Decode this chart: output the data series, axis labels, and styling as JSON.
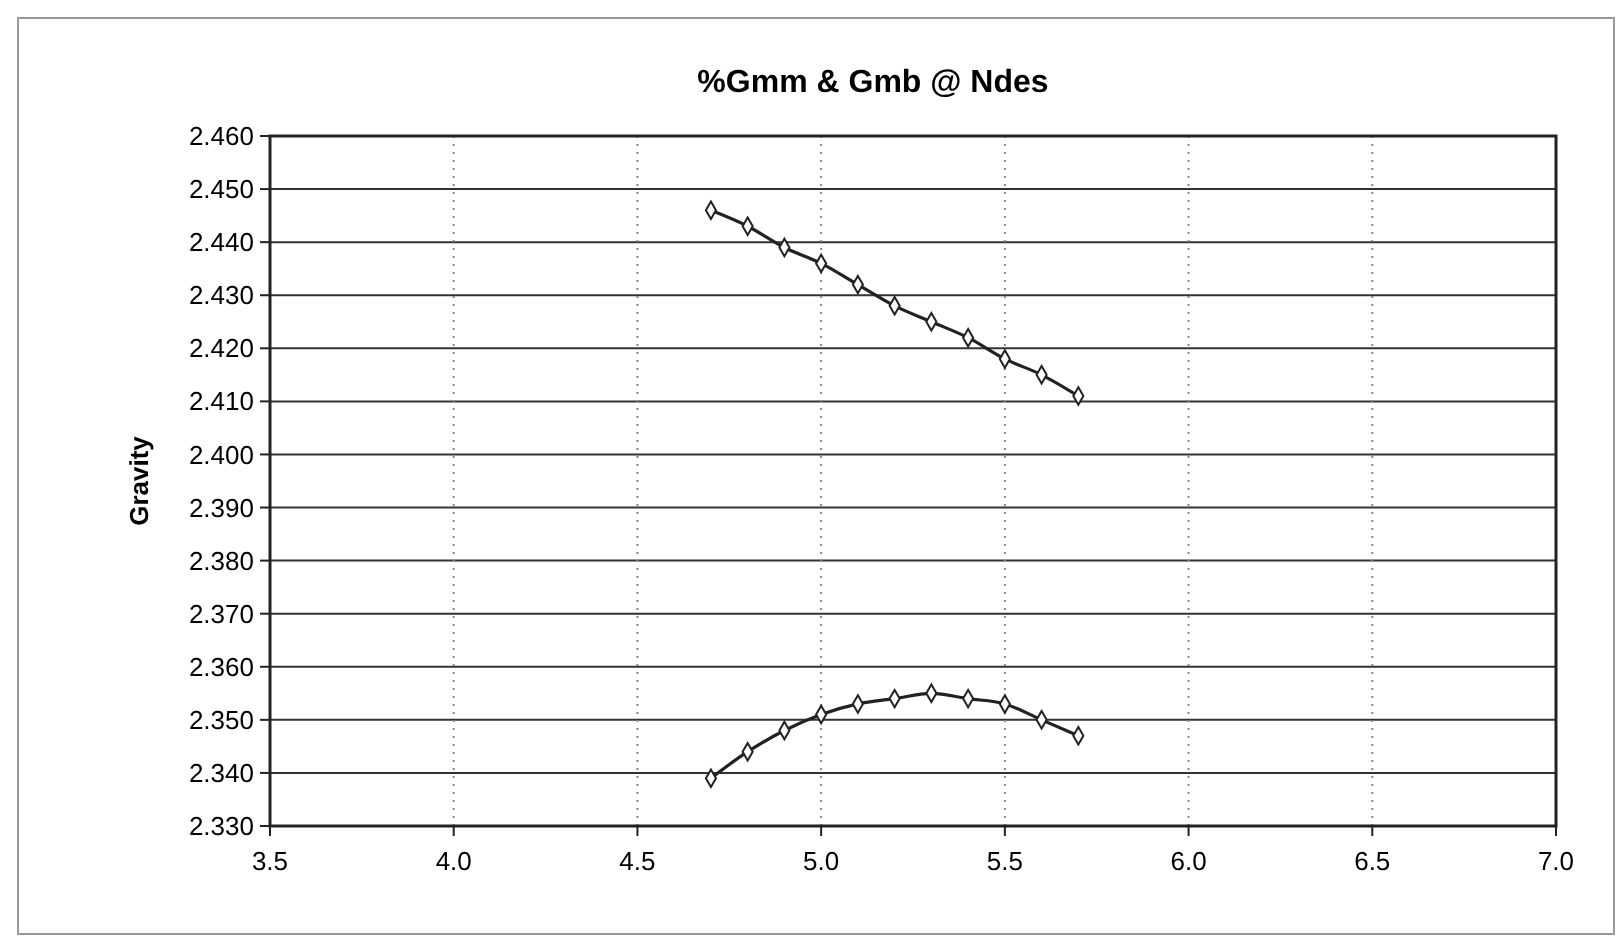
{
  "chart_data": {
    "type": "line",
    "title": "%Gmm & Gmb @ Ndes",
    "ylabel": "Gravity",
    "x": [
      4.7,
      4.8,
      4.9,
      5.0,
      5.1,
      5.2,
      5.3,
      5.4,
      5.5,
      5.6,
      5.7
    ],
    "series": [
      {
        "color": "#222222",
        "values": [
          2.446,
          2.443,
          2.439,
          2.436,
          2.432,
          2.428,
          2.425,
          2.422,
          2.418,
          2.415,
          2.411
        ]
      },
      {
        "color": "#222222",
        "values": [
          2.339,
          2.344,
          2.348,
          2.351,
          2.353,
          2.354,
          2.355,
          2.354,
          2.353,
          2.35,
          2.347
        ]
      }
    ],
    "xlim": [
      3.5,
      7.0
    ],
    "xticks": [
      {
        "value": 3.5,
        "label": "3.5"
      },
      {
        "value": 4,
        "label": "4.0"
      },
      {
        "value": 4.5,
        "label": "4.5"
      },
      {
        "value": 5,
        "label": "5.0"
      },
      {
        "value": 5.5,
        "label": "5.5"
      },
      {
        "value": 6,
        "label": "6.0"
      },
      {
        "value": 6.5,
        "label": "6.5"
      },
      {
        "value": 7,
        "label": "7.0"
      }
    ],
    "ylim": [
      2.33,
      2.46
    ],
    "yticks": [
      {
        "value": 2.33,
        "label": "2.330"
      },
      {
        "value": 2.34,
        "label": "2.340"
      },
      {
        "value": 2.35,
        "label": "2.350"
      },
      {
        "value": 2.36,
        "label": "2.360"
      },
      {
        "value": 2.37,
        "label": "2.370"
      },
      {
        "value": 2.38,
        "label": "2.380"
      },
      {
        "value": 2.39,
        "label": "2.390"
      },
      {
        "value": 2.4,
        "label": "2.400"
      },
      {
        "value": 2.41,
        "label": "2.410"
      },
      {
        "value": 2.42,
        "label": "2.420"
      },
      {
        "value": 2.43,
        "label": "2.430"
      },
      {
        "value": 2.44,
        "label": "2.440"
      },
      {
        "value": 2.45,
        "label": "2.450"
      },
      {
        "value": 2.46,
        "label": "2.460"
      }
    ],
    "grid": true,
    "marker": "diamond",
    "line_style": "solid"
  }
}
